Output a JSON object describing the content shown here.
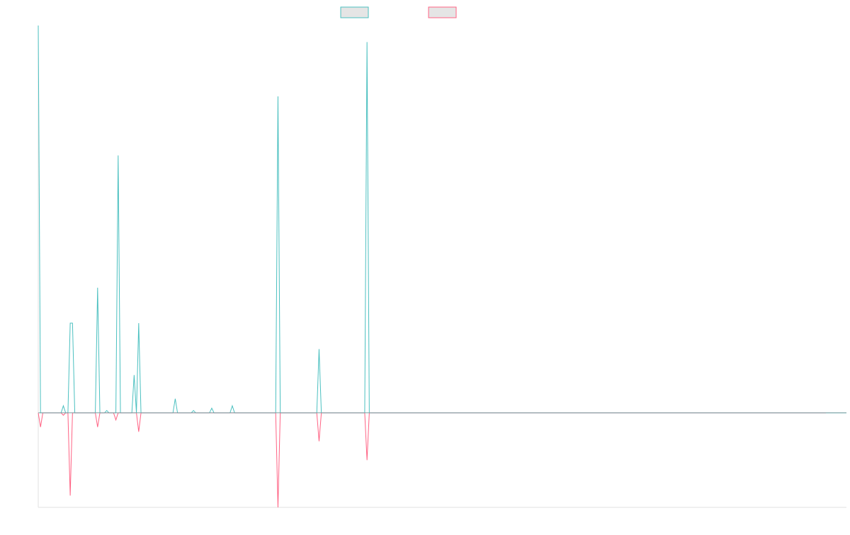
{
  "chart_data": {
    "type": "line",
    "title": "",
    "xlabel": "",
    "ylabel": "",
    "legend_position": "top-center",
    "grid": false,
    "ylim": [
      -40,
      164
    ],
    "series": [
      {
        "name": "",
        "color": "#4bc0c0",
        "fill": "#e5e5e5",
        "values": [
          164,
          0,
          0,
          0,
          0,
          0,
          0,
          0,
          0,
          0,
          0,
          3,
          0,
          0,
          38,
          38,
          0,
          0,
          0,
          0,
          0,
          0,
          0,
          0,
          0,
          0,
          53,
          0,
          0,
          0,
          1,
          0,
          0,
          0,
          0,
          109,
          0,
          0,
          0,
          0,
          0,
          0,
          16,
          0,
          38,
          0,
          0,
          0,
          0,
          0,
          0,
          0,
          0,
          0,
          0,
          0,
          0,
          0,
          0,
          0,
          6,
          0,
          0,
          0,
          0,
          0,
          0,
          0,
          1,
          0,
          0,
          0,
          0,
          0,
          0,
          0,
          2,
          0,
          0,
          0,
          0,
          0,
          0,
          0,
          0,
          3,
          0,
          0,
          0,
          0,
          0,
          0,
          0,
          0,
          0,
          0,
          0,
          0,
          0,
          0,
          0,
          0,
          0,
          0,
          0,
          134,
          0,
          0,
          0,
          0,
          0,
          0,
          0,
          0,
          0,
          0,
          0,
          0,
          0,
          0,
          0,
          0,
          0,
          27,
          0,
          0,
          0,
          0,
          0,
          0,
          0,
          0,
          0,
          0,
          0,
          0,
          0,
          0,
          0,
          0,
          0,
          0,
          0,
          0,
          157,
          0,
          0,
          0,
          0,
          0,
          0,
          0,
          0,
          0,
          0,
          0,
          0,
          0,
          0,
          0,
          0,
          0,
          0,
          0,
          0,
          0,
          0,
          0,
          0,
          0,
          0,
          0,
          0,
          0,
          0,
          0,
          0,
          0,
          0,
          0,
          0,
          0,
          0,
          0,
          0,
          0,
          0,
          0,
          0,
          0,
          0,
          0,
          0,
          0,
          0,
          0,
          0,
          0,
          0,
          0,
          0,
          0,
          0,
          0,
          0,
          0,
          0,
          0,
          0,
          0,
          0,
          0,
          0,
          0,
          0,
          0,
          0,
          0,
          0,
          0,
          0,
          0,
          0,
          0,
          0,
          0,
          0,
          0,
          0,
          0,
          0,
          0,
          0,
          0,
          0,
          0,
          0,
          0,
          0,
          0,
          0,
          0,
          0,
          0,
          0,
          0,
          0,
          0,
          0,
          0,
          0,
          0,
          0,
          0,
          0,
          0,
          0,
          0,
          0,
          0,
          0,
          0,
          0,
          0,
          0,
          0,
          0,
          0,
          0,
          0,
          0,
          0,
          0,
          0,
          0,
          0,
          0,
          0,
          0,
          0,
          0,
          0,
          0,
          0,
          0,
          0,
          0,
          0,
          0,
          0,
          0,
          0,
          0,
          0,
          0,
          0,
          0,
          0,
          0,
          0,
          0,
          0,
          0,
          0,
          0,
          0,
          0,
          0,
          0,
          0,
          0,
          0,
          0,
          0,
          0,
          0,
          0,
          0,
          0,
          0,
          0,
          0,
          0,
          0,
          0,
          0,
          0,
          0,
          0,
          0,
          0,
          0,
          0,
          0,
          0,
          0,
          0,
          0,
          0,
          0,
          0,
          0,
          0,
          0,
          0,
          0,
          0,
          0,
          0,
          0,
          0,
          0,
          0,
          0,
          0
        ]
      },
      {
        "name": "",
        "color": "#ff6384",
        "fill": "#e5e5e5",
        "values": [
          0,
          -6,
          0,
          0,
          0,
          0,
          0,
          0,
          0,
          0,
          0,
          -1,
          0,
          0,
          -35,
          0,
          0,
          0,
          0,
          0,
          0,
          0,
          0,
          0,
          0,
          0,
          -6,
          0,
          0,
          0,
          0,
          0,
          0,
          0,
          -3,
          0,
          0,
          0,
          0,
          0,
          0,
          0,
          0,
          0,
          -8,
          0,
          0,
          0,
          0,
          0,
          0,
          0,
          0,
          0,
          0,
          0,
          0,
          0,
          0,
          0,
          0,
          0,
          0,
          0,
          0,
          0,
          0,
          0,
          0,
          0,
          0,
          0,
          0,
          0,
          0,
          0,
          0,
          0,
          0,
          0,
          0,
          0,
          0,
          0,
          0,
          0,
          0,
          0,
          0,
          0,
          0,
          0,
          0,
          0,
          0,
          0,
          0,
          0,
          0,
          0,
          0,
          0,
          0,
          0,
          0,
          -40,
          0,
          0,
          0,
          0,
          0,
          0,
          0,
          0,
          0,
          0,
          0,
          0,
          0,
          0,
          0,
          0,
          0,
          -12,
          0,
          0,
          0,
          0,
          0,
          0,
          0,
          0,
          0,
          0,
          0,
          0,
          0,
          0,
          0,
          0,
          0,
          0,
          0,
          0,
          -20,
          0,
          0,
          0,
          0,
          0,
          0,
          0,
          0,
          0,
          0,
          0,
          0,
          0,
          0,
          0,
          0,
          0,
          0,
          0,
          0,
          0,
          0,
          0,
          0,
          0,
          0,
          0,
          0,
          0,
          0,
          0,
          0,
          0,
          0,
          0,
          0,
          0,
          0,
          0,
          0,
          0,
          0,
          0,
          0,
          0,
          0,
          0,
          0,
          0,
          0,
          0,
          0,
          0,
          0,
          0,
          0,
          0,
          0,
          0,
          0,
          0,
          0,
          0,
          0,
          0,
          0,
          0,
          0,
          0,
          0,
          0,
          0,
          0,
          0,
          0,
          0,
          0,
          0,
          0,
          0,
          0,
          0,
          0,
          0,
          0,
          0,
          0,
          0,
          0,
          0,
          0,
          0,
          0,
          0,
          0,
          0,
          0,
          0,
          0,
          0,
          0,
          0,
          0,
          0,
          0,
          0,
          0,
          0,
          0,
          0,
          0,
          0,
          0,
          0,
          0,
          0,
          0,
          0,
          0,
          0,
          0,
          0,
          0,
          0,
          0,
          0,
          0,
          0,
          0,
          0,
          0,
          0,
          0,
          0,
          0,
          0,
          0,
          0,
          0,
          0,
          0,
          0,
          0,
          0,
          0,
          0,
          0,
          0,
          0,
          0,
          0,
          0,
          0,
          0,
          0,
          0,
          0,
          0,
          0,
          0,
          0,
          0,
          0,
          0,
          0,
          0,
          0,
          0,
          0,
          0,
          0,
          0,
          0,
          0,
          0,
          0,
          0,
          0,
          0,
          0,
          0,
          0,
          0,
          0,
          0,
          0,
          0,
          0,
          0,
          0,
          0,
          0,
          0,
          0,
          0,
          0,
          0,
          0,
          0,
          0,
          0
        ]
      }
    ]
  }
}
